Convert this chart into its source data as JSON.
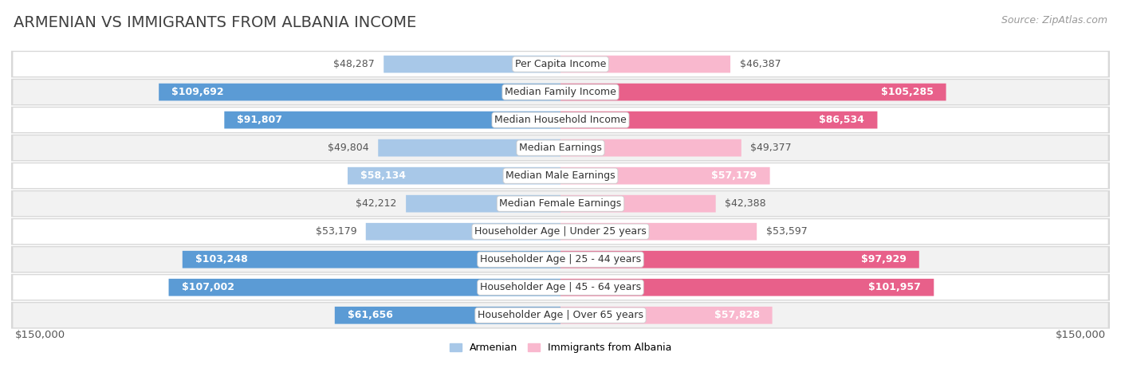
{
  "title": "Armenian vs Immigrants from Albania Income",
  "source": "Source: ZipAtlas.com",
  "categories": [
    "Per Capita Income",
    "Median Family Income",
    "Median Household Income",
    "Median Earnings",
    "Median Male Earnings",
    "Median Female Earnings",
    "Householder Age | Under 25 years",
    "Householder Age | 25 - 44 years",
    "Householder Age | 45 - 64 years",
    "Householder Age | Over 65 years"
  ],
  "armenian_values": [
    48287,
    109692,
    91807,
    49804,
    58134,
    42212,
    53179,
    103248,
    107002,
    61656
  ],
  "albania_values": [
    46387,
    105285,
    86534,
    49377,
    57179,
    42388,
    53597,
    97929,
    101957,
    57828
  ],
  "armenian_labels": [
    "$48,287",
    "$109,692",
    "$91,807",
    "$49,804",
    "$58,134",
    "$42,212",
    "$53,179",
    "$103,248",
    "$107,002",
    "$61,656"
  ],
  "albania_labels": [
    "$46,387",
    "$105,285",
    "$86,534",
    "$49,377",
    "$57,179",
    "$42,388",
    "$53,597",
    "$97,929",
    "$101,957",
    "$57,828"
  ],
  "armenian_color_light": "#a8c8e8",
  "armenian_color_dark": "#5b9bd5",
  "albania_color_light": "#f9b8ce",
  "albania_color_dark": "#e8608a",
  "row_colors": [
    "#ffffff",
    "#f2f2f2"
  ],
  "row_border_color": "#d8d8d8",
  "max_value": 150000,
  "legend_armenian": "Armenian",
  "legend_albania": "Immigrants from Albania",
  "xlabel_left": "$150,000",
  "xlabel_right": "$150,000",
  "background_color": "#ffffff",
  "title_color": "#404040",
  "label_color_outside": "#555555",
  "label_color_inside": "#ffffff",
  "source_color": "#999999",
  "title_fontsize": 14,
  "label_fontsize": 9,
  "category_fontsize": 9,
  "source_fontsize": 9,
  "threshold_dark": 60000,
  "threshold_medium": 35000
}
